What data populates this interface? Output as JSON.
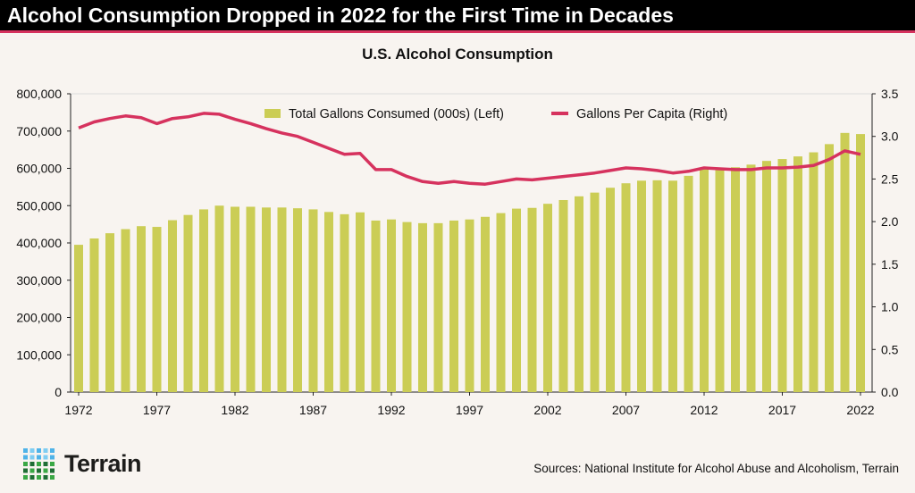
{
  "header": {
    "title": "Alcohol Consumption Dropped in 2022 for the First Time in Decades"
  },
  "colors": {
    "bar": "#cbcd55",
    "line": "#d6325e",
    "title_bg": "#000000",
    "background": "#f8f4f0",
    "logo_blue": "#4fb3e8",
    "logo_green": "#3aa845"
  },
  "chart_data": {
    "type": "bar+line",
    "title": "U.S. Alcohol Consumption",
    "legend_position": "top-center",
    "grid": false,
    "x": [
      1972,
      1973,
      1974,
      1975,
      1976,
      1977,
      1978,
      1979,
      1980,
      1981,
      1982,
      1983,
      1984,
      1985,
      1986,
      1987,
      1988,
      1989,
      1990,
      1991,
      1992,
      1993,
      1994,
      1995,
      1996,
      1997,
      1998,
      1999,
      2000,
      2001,
      2002,
      2003,
      2004,
      2005,
      2006,
      2007,
      2008,
      2009,
      2010,
      2011,
      2012,
      2013,
      2014,
      2015,
      2016,
      2017,
      2018,
      2019,
      2020,
      2021,
      2022
    ],
    "x_tick_labels": [
      "1972",
      "1977",
      "1982",
      "1987",
      "1992",
      "1997",
      "2002",
      "2007",
      "2012",
      "2017",
      "2022"
    ],
    "y_left": {
      "range": [
        0,
        800000
      ],
      "tick_labels": [
        "0",
        "100,000",
        "200,000",
        "300,000",
        "400,000",
        "500,000",
        "600,000",
        "700,000",
        "800,000"
      ]
    },
    "y_right": {
      "range": [
        0,
        3.5
      ],
      "tick_labels": [
        "0.0",
        "0.5",
        "1.0",
        "1.5",
        "2.0",
        "2.5",
        "3.0",
        "3.5"
      ]
    },
    "series": [
      {
        "name": "Total Gallons Consumed (000s) (Left)",
        "type": "bar",
        "axis": "left",
        "values": [
          395000,
          412000,
          426000,
          437000,
          445000,
          443000,
          461000,
          475000,
          490000,
          500000,
          497000,
          497000,
          495000,
          495000,
          493000,
          490000,
          483000,
          477000,
          482000,
          460000,
          463000,
          456000,
          453000,
          453000,
          460000,
          463000,
          470000,
          480000,
          492000,
          494000,
          505000,
          515000,
          525000,
          535000,
          548000,
          560000,
          567000,
          568000,
          567000,
          580000,
          598000,
          598000,
          603000,
          610000,
          620000,
          625000,
          632000,
          643000,
          665000,
          695000,
          692000
        ]
      },
      {
        "name": "Gallons Per Capita (Right)",
        "type": "line",
        "axis": "right",
        "values": [
          3.1,
          3.17,
          3.21,
          3.24,
          3.22,
          3.15,
          3.21,
          3.23,
          3.27,
          3.26,
          3.2,
          3.15,
          3.09,
          3.04,
          3.0,
          2.93,
          2.86,
          2.79,
          2.8,
          2.61,
          2.61,
          2.53,
          2.47,
          2.45,
          2.47,
          2.45,
          2.44,
          2.47,
          2.5,
          2.49,
          2.51,
          2.53,
          2.55,
          2.57,
          2.6,
          2.63,
          2.62,
          2.6,
          2.57,
          2.59,
          2.63,
          2.62,
          2.61,
          2.61,
          2.63,
          2.63,
          2.64,
          2.66,
          2.73,
          2.83,
          2.79
        ]
      }
    ]
  },
  "footer": {
    "source": "Sources: National Institute for Alcohol Abuse and Alcoholism, Terrain",
    "logo_text": "Terrain"
  }
}
